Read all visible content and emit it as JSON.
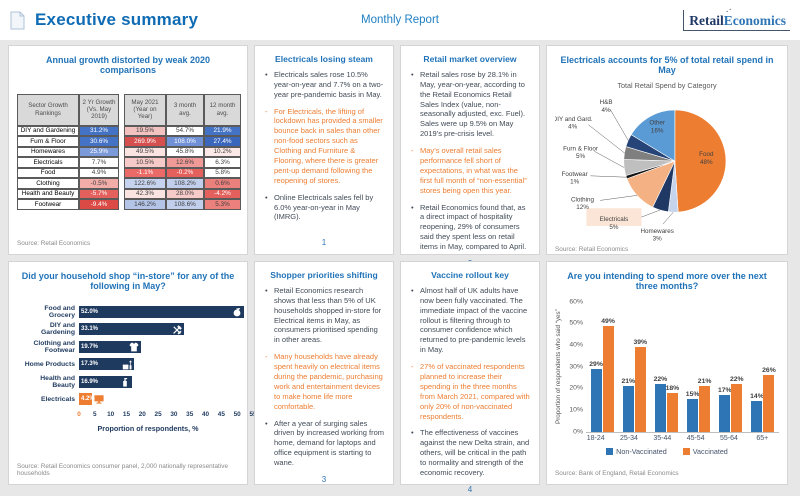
{
  "header": {
    "title": "Executive summary",
    "subtitle": "Monthly Report",
    "logo_retail": "Retail",
    "logo_economics": "Economics"
  },
  "colors": {
    "accent_blue": "#2173B8",
    "orange": "#ED7D31",
    "navy": "#1F3A5F",
    "nonvacc_blue": "#2E75B6"
  },
  "panels": {
    "growth": {
      "title": "Annual growth distorted by weak 2020 comparisons",
      "source": "Source: Retail Economics",
      "columns": [
        "Sector Growth Rankings",
        "2 Yr Growth (Vs. May 2019)",
        "May 2021 (Year on Year)",
        "3 month avg.",
        "12 month avg."
      ],
      "rows": [
        {
          "sector": "DIY and Gardening",
          "cells": [
            {
              "v": "31.2%",
              "bg": "#4472C4",
              "fg": "#FFFFFF"
            },
            {
              "v": "19.5%",
              "bg": "#F2C2C0",
              "fg": "#404040"
            },
            {
              "v": "54.7%",
              "bg": "#FFFFFF",
              "fg": "#404040"
            },
            {
              "v": "21.9%",
              "bg": "#4472C4",
              "fg": "#FFFFFF"
            }
          ]
        },
        {
          "sector": "Furn & Floor",
          "cells": [
            {
              "v": "30.6%",
              "bg": "#4472C4",
              "fg": "#FFFFFF"
            },
            {
              "v": "269.9%",
              "bg": "#D64F4F",
              "fg": "#FFFFFF"
            },
            {
              "v": "108.0%",
              "bg": "#7191D6",
              "fg": "#FFFFFF"
            },
            {
              "v": "27.4%",
              "bg": "#3A66BC",
              "fg": "#FFFFFF"
            }
          ]
        },
        {
          "sector": "Homewares",
          "cells": [
            {
              "v": "25.9%",
              "bg": "#7B9AD9",
              "fg": "#FFFFFF"
            },
            {
              "v": "49.5%",
              "bg": "#FAE3E1",
              "fg": "#404040"
            },
            {
              "v": "45.8%",
              "bg": "#FFFFFF",
              "fg": "#404040"
            },
            {
              "v": "10.2%",
              "bg": "#FBE9E7",
              "fg": "#404040"
            }
          ]
        },
        {
          "sector": "Electricals",
          "cells": [
            {
              "v": "7.7%",
              "bg": "#FFFFFF",
              "fg": "#404040"
            },
            {
              "v": "10.5%",
              "bg": "#F5CAC8",
              "fg": "#404040"
            },
            {
              "v": "12.6%",
              "bg": "#EF9A97",
              "fg": "#404040"
            },
            {
              "v": "6.3%",
              "bg": "#FFFFFF",
              "fg": "#404040"
            }
          ]
        },
        {
          "sector": "Food",
          "cells": [
            {
              "v": "4.9%",
              "bg": "#FFFFFF",
              "fg": "#404040"
            },
            {
              "v": "-1.1%",
              "bg": "#E96A66",
              "fg": "#FFFFFF"
            },
            {
              "v": "-0.2%",
              "bg": "#E4605C",
              "fg": "#FFFFFF"
            },
            {
              "v": "5.8%",
              "bg": "#FFFFFF",
              "fg": "#404040"
            }
          ]
        },
        {
          "sector": "Clothing",
          "cells": [
            {
              "v": "-0.5%",
              "bg": "#F2ADA9",
              "fg": "#404040"
            },
            {
              "v": "122.6%",
              "bg": "#C6D3EE",
              "fg": "#404040"
            },
            {
              "v": "108.2%",
              "bg": "#C2CFEC",
              "fg": "#404040"
            },
            {
              "v": "0.6%",
              "bg": "#EC807C",
              "fg": "#404040"
            }
          ]
        },
        {
          "sector": "Health and Beauty",
          "cells": [
            {
              "v": "-5.7%",
              "bg": "#E4605C",
              "fg": "#FFFFFF"
            },
            {
              "v": "42.3%",
              "bg": "#FAE3E1",
              "fg": "#404040"
            },
            {
              "v": "28.0%",
              "bg": "#F5CAC8",
              "fg": "#404040"
            },
            {
              "v": "-4.2%",
              "bg": "#E4605C",
              "fg": "#FFFFFF"
            }
          ]
        },
        {
          "sector": "Footwear",
          "cells": [
            {
              "v": "-9.4%",
              "bg": "#DC4A46",
              "fg": "#FFFFFF"
            },
            {
              "v": "146.2%",
              "bg": "#B3C4E7",
              "fg": "#404040"
            },
            {
              "v": "108.6%",
              "bg": "#C2CFEC",
              "fg": "#404040"
            },
            {
              "v": "5.3%",
              "bg": "#EC807C",
              "fg": "#404040"
            }
          ]
        }
      ]
    },
    "steam": {
      "title": "Electricals losing steam",
      "page": "1",
      "bullets": [
        {
          "text": "Electricals sales rose 10.5% year-on-year and 7.7% on a two-year pre-pandemic basis in May.",
          "emphasis": false
        },
        {
          "text": "For Electricals, the lifting of lockdown has provided a smaller bounce back in sales than other non-food sectors such as Clothing and Furniture & Flooring, where there is greater pent-up demand following the reopening of stores.",
          "emphasis": true
        },
        {
          "text": "Online Electricals sales fell by 6.0% year-on-year in May (IMRG).",
          "emphasis": false
        }
      ]
    },
    "overview": {
      "title": "Retail market overview",
      "page": "2",
      "bullets": [
        {
          "text": "Retail sales rose by 28.1% in May, year-on-year, according to the Retail Economics Retail Sales Index (value, non-seasonally adjusted, exc. Fuel). Sales were up 9.5% on May 2019’s pre-crisis level.",
          "emphasis": false
        },
        {
          "text": "May’s overall retail sales performance fell short of expectations, in what was the first full month of “non-essential” stores being open this year.",
          "emphasis": true
        },
        {
          "text": "Retail Economics found that, as a direct impact of hospitality reopening, 29% of consumers said they spent less on retail items in May, compared to April.",
          "emphasis": false
        }
      ]
    },
    "pie": {
      "title": "Electricals accounts for 5% of total retail spend in May",
      "chart_title": "Total Retail Spend by Category",
      "source": "Source: Retail Economics"
    },
    "instore": {
      "title": "Did your household shop “in-store” for any of the following in May?",
      "xlabel": "Proportion of respondents, %",
      "source": "Source: Retail Economics consumer panel, 2,000 nationally representative households"
    },
    "priorities": {
      "title": "Shopper priorities shifting",
      "page": "3",
      "bullets": [
        {
          "text": "Retail Economics research shows that less than 5% of UK households shopped in-store for Electrical items in May, as consumers prioritised spending in other areas.",
          "emphasis": false
        },
        {
          "text": "Many households have already spent heavily on electrical items during the pandemic, purchasing work and entertainment devices to make home life more comfortable.",
          "emphasis": true
        },
        {
          "text": "After a year of surging sales driven by increased working from home, demand for laptops and office equipment is starting to wane.",
          "emphasis": false
        }
      ]
    },
    "vaccine": {
      "title": "Vaccine rollout key",
      "page": "4",
      "bullets": [
        {
          "text": "Almost half of UK adults have now been fully vaccinated. The immediate impact of the vaccine rollout is filtering through to consumer confidence which returned to pre-pandemic levels in May.",
          "emphasis": false
        },
        {
          "text": "27% of vaccinated respondents planned to increase their spending in the three months from March 2021, compared with only 20% of non-vaccinated respondents.",
          "emphasis": true
        },
        {
          "text": "The effectiveness of vaccines against the new Delta strain, and others, will be critical in the path to normality and strength of the economic recovery.",
          "emphasis": false
        }
      ]
    },
    "spend": {
      "title": "Are you intending to spend more over the next three months?",
      "ylabel": "Proportion of respondents who said “yes”",
      "source": "Source: Bank of England, Retail Economics"
    }
  },
  "chart_data": [
    {
      "type": "pie",
      "title": "Total Retail Spend by Category",
      "slices": [
        {
          "label": "Food",
          "value": 48,
          "color": "#ED7D31"
        },
        {
          "label": "Homewares",
          "value": 3,
          "color": "#C5D3EC"
        },
        {
          "label": "Electricals",
          "value": 5,
          "color": "#1F3864",
          "highlight": true
        },
        {
          "label": "Clothing",
          "value": 12,
          "color": "#F4B183"
        },
        {
          "label": "Footwear",
          "value": 1,
          "color": "#141414"
        },
        {
          "label": "Furn & Floor",
          "value": 5,
          "color": "#BFBFBF"
        },
        {
          "label": "DIY and Gard.",
          "value": 4,
          "color": "#7F7F7F"
        },
        {
          "label": "H&B",
          "value": 4,
          "color": "#264478"
        },
        {
          "label": "Other",
          "value": 16,
          "color": "#5B9BD5"
        }
      ]
    },
    {
      "type": "bar",
      "orientation": "horizontal",
      "title": "Did your household shop “in-store” for any of the following in May?",
      "categories": [
        "Food and Grocery",
        "DIY and Gardening",
        "Clothing and Footwear",
        "Home Products",
        "Health and Beauty",
        "Electricals"
      ],
      "values": [
        52.0,
        33.1,
        19.7,
        17.3,
        16.9,
        4.2
      ],
      "labels": [
        "52.0%",
        "33.1%",
        "19.7%",
        "17.3%",
        "16.9%",
        "4.2%"
      ],
      "bar_colors": [
        "#1F3A5F",
        "#1F3A5F",
        "#1F3A5F",
        "#1F3A5F",
        "#1F3A5F",
        "#ED7D31"
      ],
      "icons": [
        "apple-icon",
        "tools-icon",
        "tshirt-icon",
        "furniture-icon",
        "cosmetics-icon",
        "tv-icon"
      ],
      "xlabel": "Proportion of respondents, %",
      "xlim": [
        0,
        55
      ],
      "xticks": [
        0,
        5,
        10,
        15,
        20,
        25,
        30,
        35,
        40,
        45,
        50,
        55
      ]
    },
    {
      "type": "bar",
      "title": "Are you intending to spend more over the next three months?",
      "categories": [
        "18-24",
        "25-34",
        "35-44",
        "45-54",
        "55-64",
        "65+"
      ],
      "series": [
        {
          "name": "Non-Vaccinated",
          "color": "#2E75B6",
          "values": [
            29,
            21,
            22,
            15,
            17,
            14
          ]
        },
        {
          "name": "Vaccinated",
          "color": "#ED7D31",
          "values": [
            49,
            39,
            18,
            21,
            22,
            26
          ]
        }
      ],
      "ylabel": "Proportion of respondents who said “yes”",
      "ylim": [
        0,
        60
      ],
      "yticks": [
        "0%",
        "10%",
        "20%",
        "30%",
        "40%",
        "50%",
        "60%"
      ],
      "legend_position": "bottom"
    }
  ]
}
